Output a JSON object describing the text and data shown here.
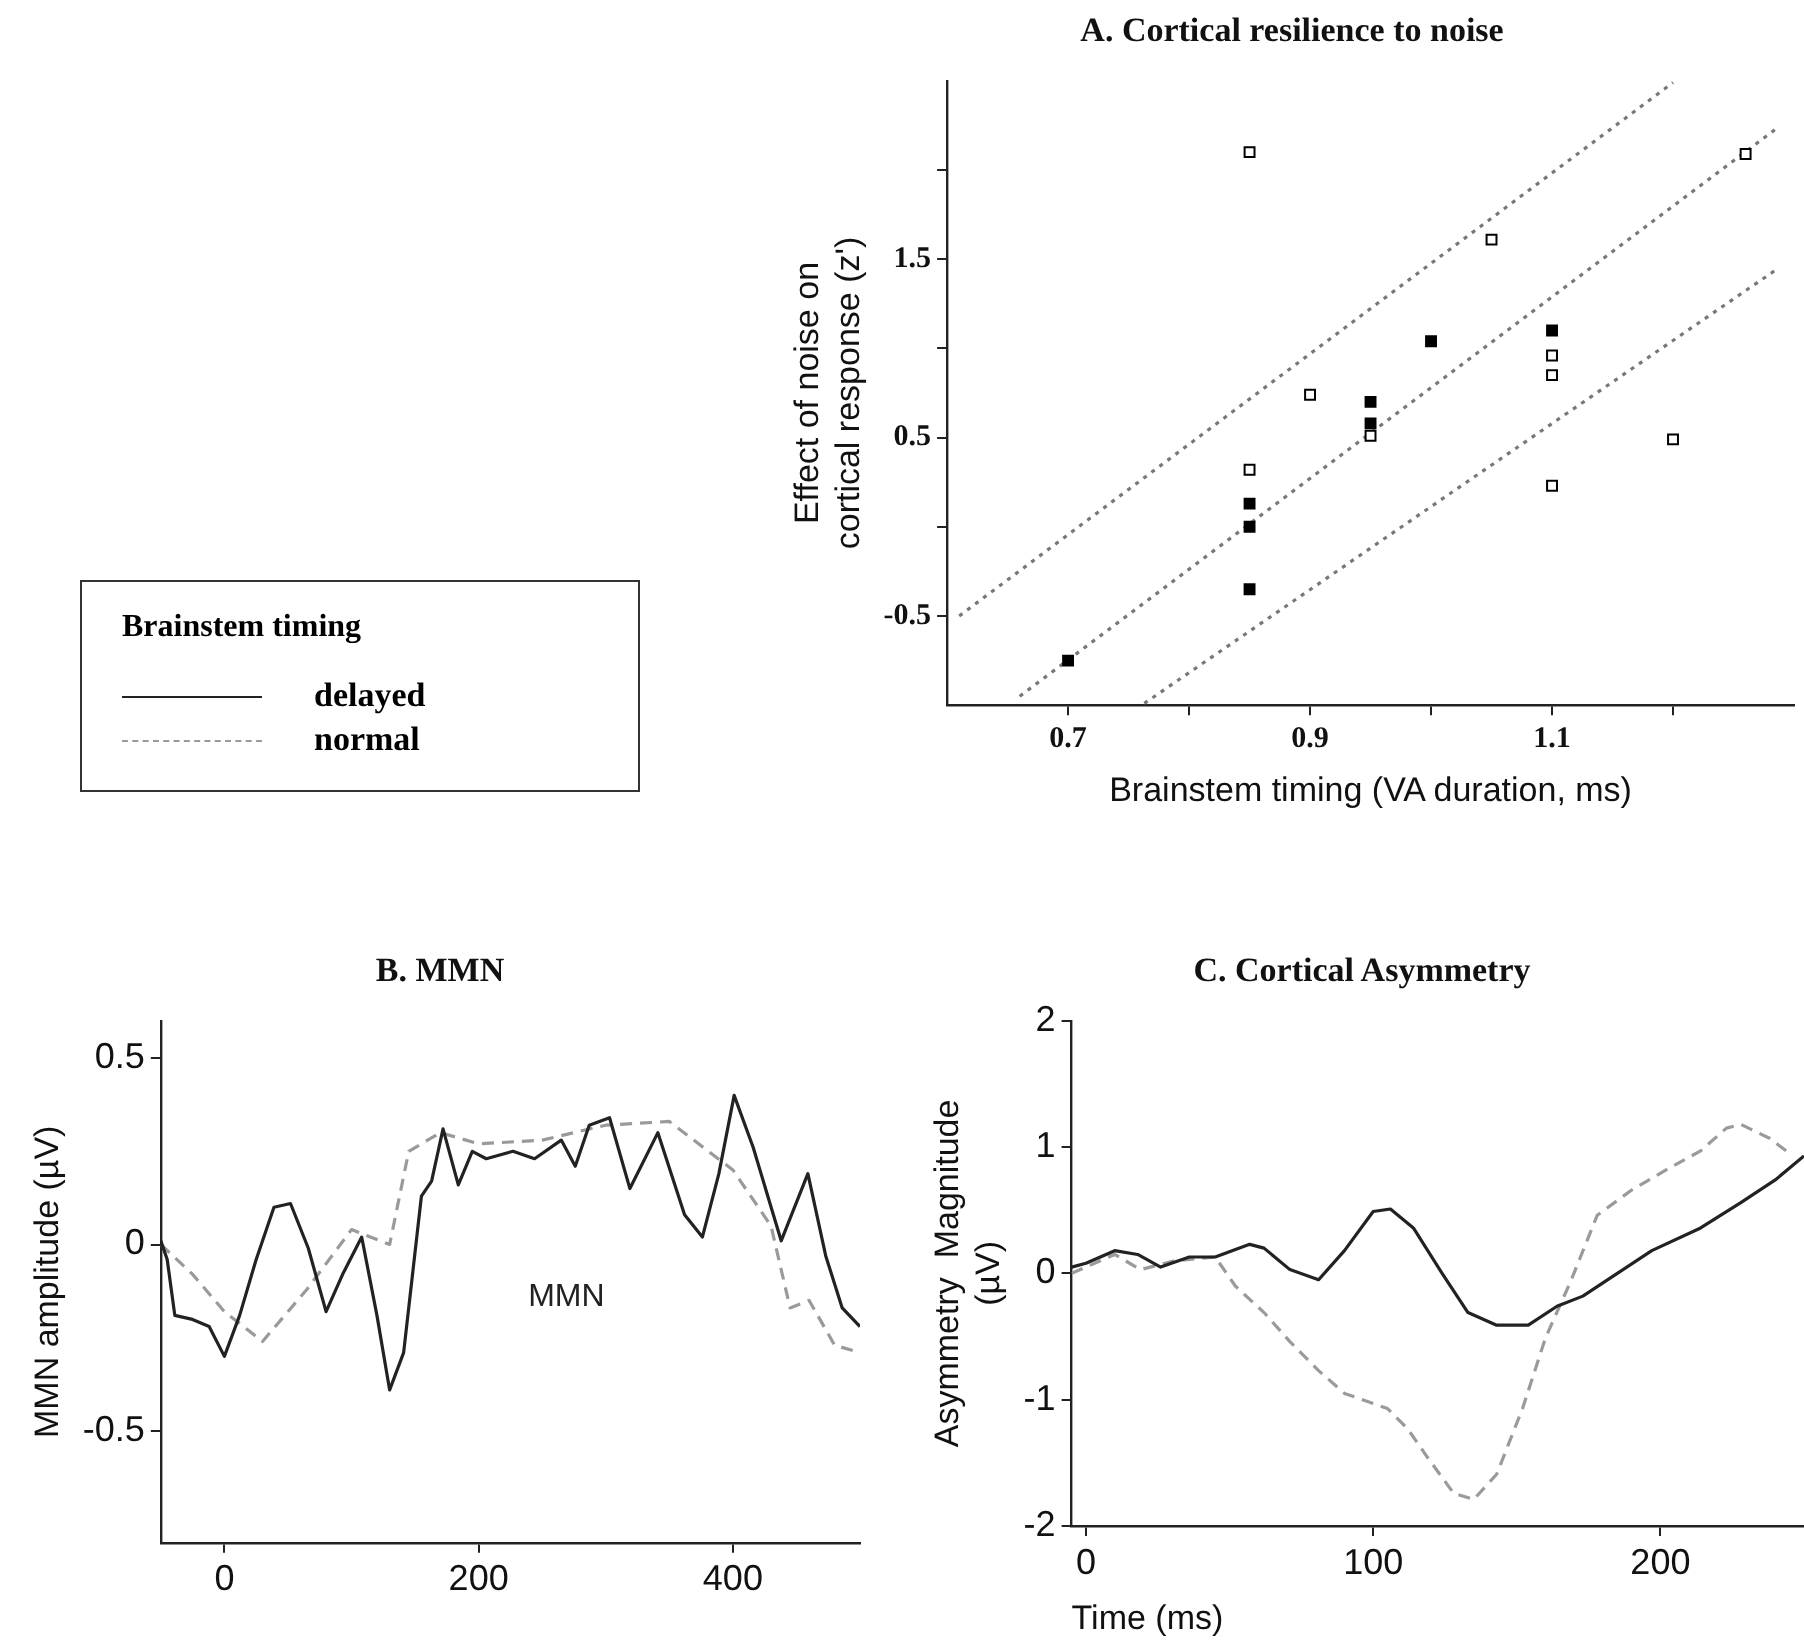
{
  "chart_data": [
    {
      "type": "scatter",
      "title": "A. Cortical resilience to noise",
      "xlabel": "Brainstem timing (VA duration, ms)",
      "ylabel": "Effect of noise on cortical response (z')",
      "xlim": [
        0.6,
        1.3
      ],
      "ylim": [
        -1,
        2.5
      ],
      "xticks": [
        0.7,
        {
          "value": 0.8,
          "label": null
        },
        0.9,
        {
          "value": 1.0,
          "label": null
        },
        1.1,
        {
          "value": 1.2,
          "label": null
        }
      ],
      "yticks": [
        -0.5,
        {
          "value": 0,
          "label": null
        },
        0.5,
        {
          "value": 1,
          "label": null
        },
        1.5,
        {
          "value": 2,
          "label": null
        }
      ],
      "marker": "square",
      "series": [
        {
          "color": "#000000",
          "x": [
            0.7,
            0.85,
            0.85,
            0.85,
            0.95,
            0.95,
            1.0,
            1.1
          ],
          "values": [
            -0.75,
            -0.35,
            0.0,
            0.13,
            0.7,
            0.58,
            1.04,
            1.1
          ]
        },
        {
          "color": "#ffffff",
          "x": [
            0.85,
            0.9,
            0.85,
            0.95,
            1.05,
            1.1,
            1.1,
            1.1,
            1.2,
            1.26
          ],
          "values": [
            2.1,
            0.74,
            0.32,
            0.51,
            1.61,
            0.96,
            0.85,
            0.23,
            0.49,
            2.09
          ]
        },
        {
          "type": "line",
          "color": "#777777",
          "line_style": "dotted",
          "marker": "none",
          "x": [
            0.61,
            1.2
          ],
          "values": [
            -0.5,
            2.49
          ]
        },
        {
          "type": "line",
          "color": "#777777",
          "line_style": "dotted",
          "marker": "none",
          "x": [
            0.66,
            1.285
          ],
          "values": [
            -0.95,
            2.23
          ]
        },
        {
          "type": "line",
          "color": "#777777",
          "line_style": "dotted",
          "marker": "none",
          "x": [
            0.763,
            1.285
          ],
          "values": [
            -0.99,
            1.44
          ]
        }
      ]
    },
    {
      "type": "line",
      "title": "B. MMN",
      "ylabel": "MMN amplitude (µV)",
      "xlim": [
        -50,
        500
      ],
      "ylim": [
        -0.8,
        0.6
      ],
      "xticks": [
        0,
        200,
        400
      ],
      "yticks": [
        -0.5,
        0,
        0.5
      ],
      "legend": "top left",
      "legend_title": "Brainstem timing",
      "annotations": [
        "MMN"
      ],
      "series": [
        {
          "name": "delayed",
          "color": "#222222",
          "line_style": "solid",
          "x": [
            -50,
            -45,
            -39,
            -26,
            -12,
            0,
            12,
            25,
            39,
            52,
            66,
            80,
            93,
            108,
            120,
            130,
            141,
            155,
            163,
            172,
            184,
            195,
            206,
            227,
            244,
            265,
            276,
            287,
            303,
            319,
            341,
            362,
            376,
            389,
            401,
            416,
            438,
            459,
            473,
            486,
            500
          ],
          "values": [
            0.01,
            -0.04,
            -0.19,
            -0.2,
            -0.22,
            -0.3,
            -0.19,
            -0.04,
            0.1,
            0.11,
            -0.01,
            -0.18,
            -0.08,
            0.02,
            -0.19,
            -0.39,
            -0.29,
            0.13,
            0.17,
            0.31,
            0.16,
            0.25,
            0.23,
            0.25,
            0.23,
            0.28,
            0.21,
            0.32,
            0.34,
            0.15,
            0.3,
            0.08,
            0.02,
            0.19,
            0.4,
            0.26,
            0.01,
            0.19,
            -0.03,
            -0.17,
            -0.22
          ]
        },
        {
          "name": "normal",
          "color": "#9a9a9a",
          "line_style": "dashed",
          "x": [
            -50,
            -25,
            0,
            30,
            65,
            100,
            130,
            145,
            170,
            200,
            250,
            300,
            350,
            400,
            430,
            445,
            460,
            480,
            500
          ],
          "values": [
            0,
            -0.08,
            -0.18,
            -0.26,
            -0.12,
            0.04,
            0,
            0.25,
            0.3,
            0.27,
            0.28,
            0.32,
            0.33,
            0.2,
            0.05,
            -0.17,
            -0.15,
            -0.27,
            -0.29
          ]
        }
      ]
    },
    {
      "type": "line",
      "title": "C. Cortical Asymmetry",
      "xlabel": "Time (ms)",
      "ylabel": "Asymmetry  Magnitude (µV)",
      "xlim": [
        -5,
        250
      ],
      "ylim": [
        -2,
        2
      ],
      "xticks": [
        0,
        100,
        200
      ],
      "yticks": [
        -2,
        -1,
        0,
        1,
        2
      ],
      "series": [
        {
          "color": "#222222",
          "line_style": "solid",
          "x": [
            -5,
            0,
            10,
            18,
            26,
            36,
            45,
            57,
            62,
            71,
            81,
            90,
            100,
            106,
            114,
            124,
            133,
            143,
            154,
            164,
            173,
            185,
            197,
            214,
            228,
            240,
            250
          ],
          "values": [
            0.05,
            0.08,
            0.18,
            0.15,
            0.05,
            0.13,
            0.13,
            0.23,
            0.2,
            0.03,
            -0.05,
            0.18,
            0.49,
            0.51,
            0.36,
            0,
            -0.31,
            -0.41,
            -0.41,
            -0.26,
            -0.18,
            0,
            0.18,
            0.36,
            0.56,
            0.74,
            0.93
          ]
        },
        {
          "color": "#9a9a9a",
          "line_style": "dashed",
          "x": [
            -5,
            0,
            10,
            19,
            31,
            45,
            52,
            62,
            71,
            81,
            90,
            105,
            112,
            119,
            128,
            135,
            143,
            152,
            160,
            169,
            178,
            190,
            202,
            214,
            223,
            228,
            238,
            245
          ],
          "values": [
            0,
            0.05,
            0.15,
            0.03,
            0.1,
            0.13,
            -0.1,
            -0.31,
            -0.54,
            -0.77,
            -0.95,
            -1.07,
            -1.23,
            -1.46,
            -1.74,
            -1.79,
            -1.59,
            -1.07,
            -0.51,
            -0.05,
            0.46,
            0.66,
            0.82,
            0.97,
            1.15,
            1.18,
            1.07,
            0.95
          ]
        }
      ]
    }
  ]
}
